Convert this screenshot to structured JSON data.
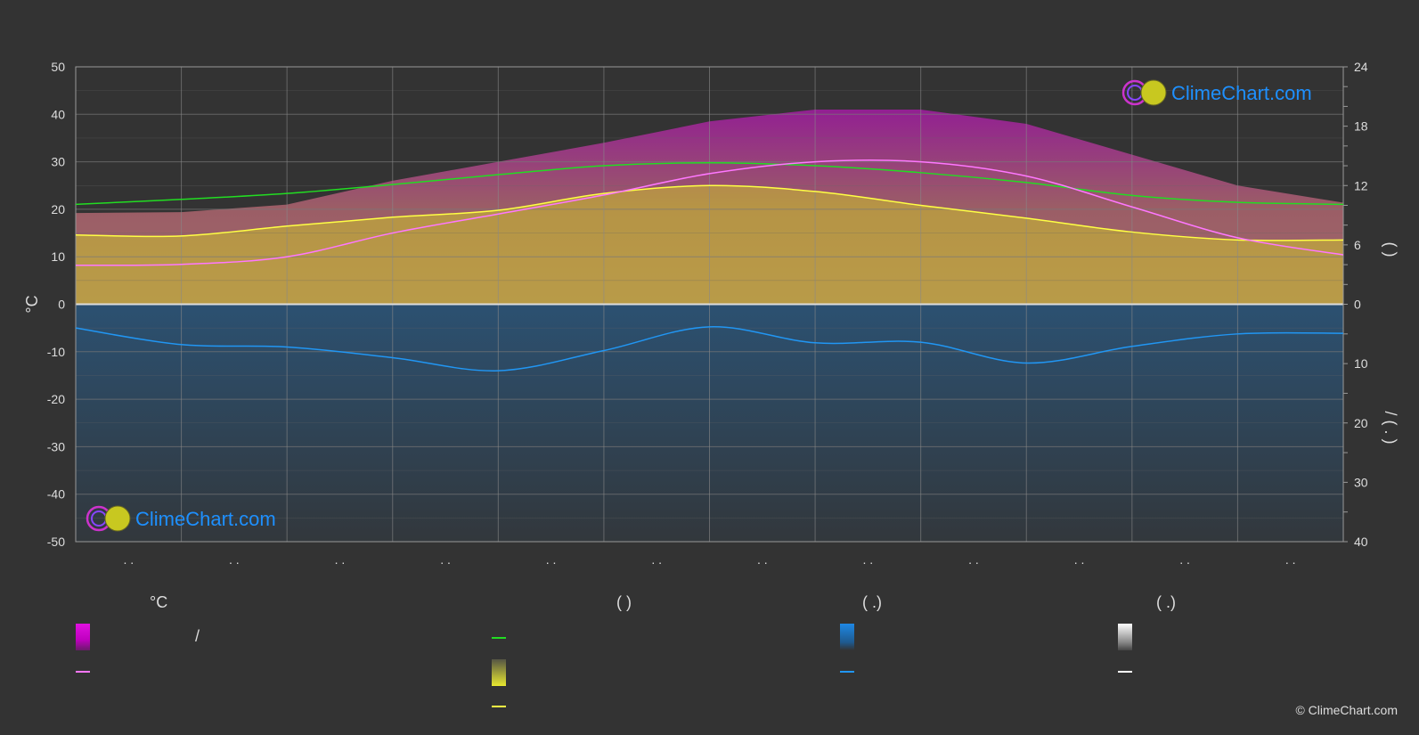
{
  "brand": {
    "name": "ClimeChart.com",
    "copyright": "© ClimeChart.com"
  },
  "legend": {
    "temp_header": "°C",
    "daylight_header": "(          )",
    "rain_header": "(   .)",
    "snow_header": "(   .)",
    "temp_range_label": "/",
    "colors": {
      "temp_range": "#e010e0",
      "temp_mean": "#ff77ff",
      "daylight": "#22dd22",
      "sunshine_fill": "#d8d820",
      "sunshine_line": "#ffff44",
      "rain_fill": "#1e88e5",
      "rain_line": "#2196f3",
      "snow_fill": "#dddddd",
      "snow_line": "#ffffff"
    }
  },
  "chart_data": {
    "type": "line",
    "x_tick_labels": [
      ". .",
      ". .",
      ". .",
      ". .",
      ". .",
      ". .",
      ". .",
      ". .",
      ". .",
      ". .",
      ". .",
      ". ."
    ],
    "left_axis": {
      "label": "°C",
      "ylim": [
        -50,
        50
      ],
      "ticks": [
        50,
        40,
        30,
        20,
        10,
        0,
        -10,
        -20,
        -30,
        -40,
        -50
      ]
    },
    "right_axis_top": {
      "label": "(   )",
      "ylim": [
        0,
        24
      ],
      "ticks": [
        24,
        18,
        12,
        6,
        0
      ]
    },
    "right_axis_bottom": {
      "label": "/   (  .  )",
      "ylim": [
        0,
        40
      ],
      "ticks": [
        10,
        20,
        30,
        40
      ]
    },
    "grid": true,
    "series": [
      {
        "key": "mean_temp",
        "values": [
          8.2,
          8.4,
          10,
          15,
          19,
          23,
          27.5,
          30,
          30,
          27,
          20.5,
          14,
          10.4
        ]
      },
      {
        "key": "daylight_hours",
        "values": [
          10.1,
          10.6,
          11.2,
          12.1,
          13.1,
          14.0,
          14.3,
          14.0,
          13.3,
          12.3,
          11.0,
          10.3,
          10.1
        ]
      },
      {
        "key": "sunshine_hours",
        "values": [
          7.0,
          6.9,
          7.9,
          8.8,
          9.5,
          11.2,
          12.0,
          11.4,
          10.0,
          8.7,
          7.3,
          6.5,
          6.5
        ]
      },
      {
        "key": "precipitation_mm",
        "values": [
          4.0,
          6.8,
          7.2,
          9.0,
          11.2,
          7.8,
          3.8,
          6.5,
          6.4,
          9.9,
          7.1,
          5.0,
          4.9
        ]
      }
    ]
  }
}
